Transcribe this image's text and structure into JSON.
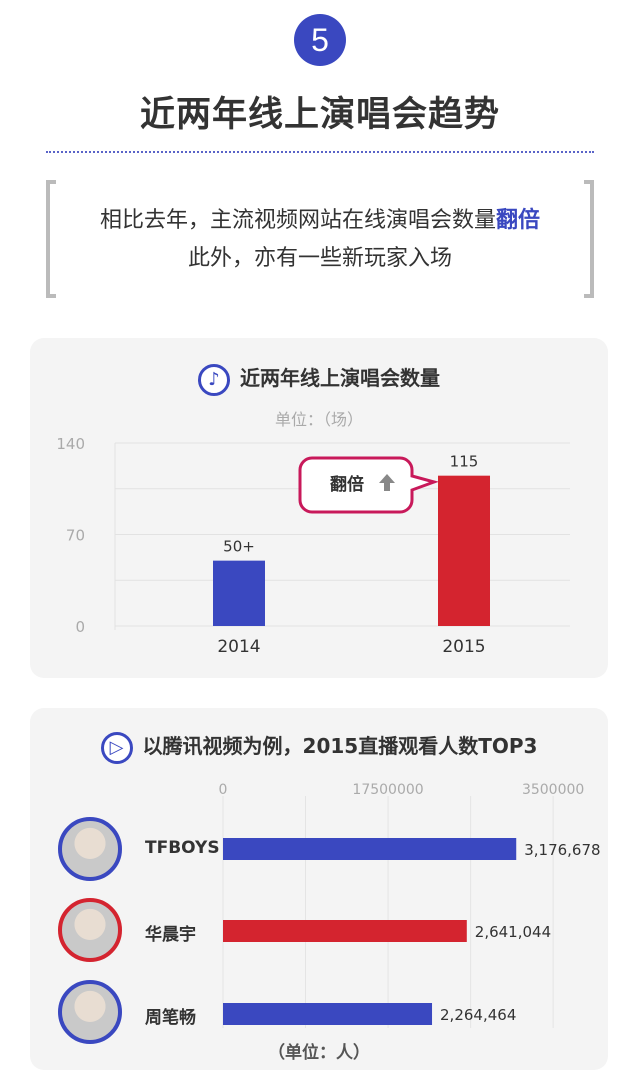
{
  "header": {
    "number": "5",
    "title": "近两年线上演唱会趋势"
  },
  "quote": {
    "line1_pre": "相比去年，主流视频网站在线演唱会数量",
    "line1_highlight": "翻倍",
    "line2": "此外，亦有一些新玩家入场"
  },
  "colors": {
    "blue": "#3a48c0",
    "red": "#d4242f",
    "callout": "#c8195a"
  },
  "chart_data": [
    {
      "type": "bar",
      "title": "近两年线上演唱会数量",
      "subtitle": "单位：（场）",
      "icon": "music-note-icon",
      "categories": [
        "2014",
        "2015"
      ],
      "values": [
        50,
        115
      ],
      "data_labels": [
        "50+",
        "115"
      ],
      "colors": [
        "#3a48c0",
        "#d4242f"
      ],
      "ylim": [
        0,
        140
      ],
      "yticks": [
        "0",
        "70",
        "140"
      ],
      "grid": true,
      "annotation": {
        "text": "翻倍",
        "icon": "arrow-up-icon",
        "target": "2015"
      }
    },
    {
      "type": "bar",
      "orientation": "horizontal",
      "title": "以腾讯视频为例，2015直播观看人数TOP3",
      "icon": "play-icon",
      "categories": [
        "TFBOYS",
        "华晨宇",
        "周笔畅"
      ],
      "values": [
        3176678,
        2641044,
        2264464
      ],
      "data_labels": [
        "3,176,678",
        "2,641,044",
        "2,264,464"
      ],
      "colors": [
        "#3a48c0",
        "#d4242f",
        "#3a48c0"
      ],
      "xticks": [
        "0",
        "17500000",
        "3500000"
      ],
      "xlim": [
        0,
        3900000
      ],
      "grid": true,
      "unit": "（单位：人）"
    }
  ]
}
